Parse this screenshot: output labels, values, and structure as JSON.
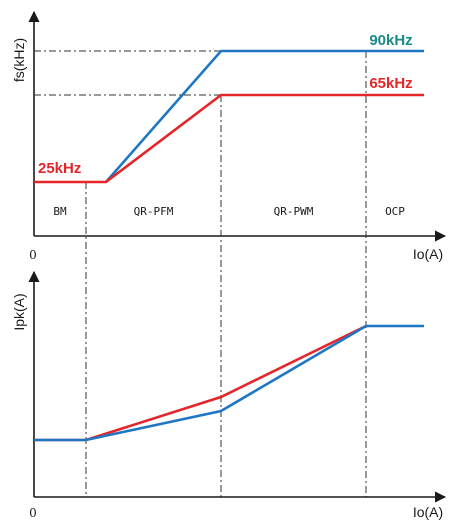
{
  "chart_data": [
    {
      "type": "line",
      "title": "",
      "xlabel": "Io(A)",
      "ylabel": "fs(kHz)",
      "origin_label": "0",
      "xlim": [
        0,
        10
      ],
      "ylim": [
        0,
        100
      ],
      "regions": [
        {
          "label": "BM",
          "x_start": 0,
          "x_end": 1.4
        },
        {
          "label": "QR-PFM",
          "x_start": 1.4,
          "x_end": 4.6
        },
        {
          "label": "QR-PWM",
          "x_start": 4.6,
          "x_end": 8.0
        },
        {
          "label": "OCP",
          "x_start": 8.0,
          "x_end": 10
        }
      ],
      "series": [
        {
          "color": "#1f77c4",
          "points": [
            [
              1.75,
              25
            ],
            [
              4.6,
              90
            ],
            [
              10,
              90
            ]
          ]
        },
        {
          "color": "#e4262b",
          "points": [
            [
              0,
              25
            ],
            [
              1.75,
              25
            ],
            [
              4.6,
              65
            ],
            [
              10,
              65
            ]
          ]
        }
      ],
      "annotations": [
        {
          "text": "90kHz",
          "color": "#1a8a8a",
          "x": 9.5,
          "y": 90
        },
        {
          "text": "65kHz",
          "color": "#e4262b",
          "x": 9.5,
          "y": 65
        },
        {
          "text": "25kHz",
          "color": "#e4262b",
          "x": 0.15,
          "y": 25
        }
      ],
      "reference_lines": [
        90,
        65
      ]
    },
    {
      "type": "line",
      "title": "",
      "xlabel": "Io(A)",
      "ylabel": "Ipk(A)",
      "origin_label": "0",
      "xlim": [
        0,
        10
      ],
      "ylim": [
        0,
        100
      ],
      "series": [
        {
          "color": "#e4262b",
          "points": [
            [
              0,
              28
            ],
            [
              1.4,
              28
            ],
            [
              4.6,
              47
            ],
            [
              8.0,
              83
            ]
          ]
        },
        {
          "color": "#1f77c4",
          "points": [
            [
              0,
              28
            ],
            [
              1.4,
              28
            ],
            [
              4.6,
              40
            ],
            [
              8.0,
              83
            ],
            [
              10,
              83
            ]
          ]
        }
      ]
    }
  ]
}
